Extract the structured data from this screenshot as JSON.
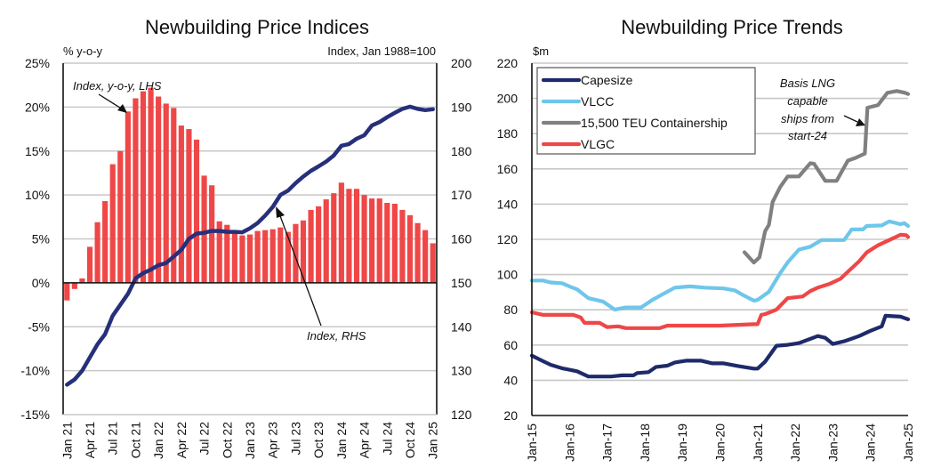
{
  "chart_data": [
    {
      "type": "bar",
      "title": "Newbuilding Price Indices",
      "left_axis_unit": "% y-o-y",
      "right_axis_unit": "Index, Jan 1988=100",
      "xlabel": "",
      "ylabel": "% y-o-y",
      "ylim": [
        -15,
        25
      ],
      "y_ticks": [
        "25%",
        "20%",
        "15%",
        "10%",
        "5%",
        "0%",
        "-5%",
        "-10%",
        "-15%"
      ],
      "y_tick_values": [
        25,
        20,
        15,
        10,
        5,
        0,
        -5,
        -10,
        -15
      ],
      "y2lim": [
        120,
        200
      ],
      "y2_ticks": [
        "200",
        "190",
        "180",
        "170",
        "160",
        "150",
        "140",
        "130",
        "120"
      ],
      "y2_tick_values": [
        200,
        190,
        180,
        170,
        160,
        150,
        140,
        130,
        120
      ],
      "x_tick_labels": [
        "Jan 21",
        "Apr 21",
        "Jul 21",
        "Oct 21",
        "Jan 22",
        "Apr 22",
        "Jul 22",
        "Oct 22",
        "Jan 23",
        "Apr 23",
        "Jul 23",
        "Oct 23",
        "Jan 24",
        "Apr 24",
        "Jul 24",
        "Oct 24",
        "Jan 25"
      ],
      "x_tick_every_n_months": 3,
      "grid": true,
      "series": [
        {
          "name": "Index, y-o-y, LHS",
          "kind": "bar",
          "axis": "left",
          "color": "#ef4747",
          "values": [
            -2.0,
            -0.7,
            0.5,
            4.1,
            6.9,
            9.3,
            13.5,
            15.0,
            19.5,
            21.0,
            21.8,
            22.2,
            21.2,
            20.4,
            19.9,
            17.9,
            17.5,
            16.3,
            12.2,
            11.1,
            7.0,
            6.6,
            5.9,
            5.4,
            5.5,
            5.9,
            6.0,
            6.1,
            6.3,
            5.8,
            6.7,
            7.1,
            8.3,
            8.7,
            9.5,
            10.2,
            11.4,
            10.7,
            10.7,
            10.0,
            9.6,
            9.6,
            9.1,
            9.0,
            8.3,
            7.7,
            6.8,
            6.0,
            4.5
          ]
        },
        {
          "name": "Index, RHS",
          "kind": "line",
          "axis": "right",
          "color": "#26307a",
          "values": [
            126.8,
            128.0,
            130.0,
            133.0,
            136.0,
            138.3,
            142.5,
            145.0,
            147.5,
            151.0,
            152.2,
            153.0,
            154.0,
            154.5,
            156.0,
            157.5,
            160.0,
            161.2,
            161.4,
            161.8,
            161.8,
            161.6,
            161.6,
            161.5,
            162.4,
            163.6,
            165.3,
            167.3,
            170.0,
            171.0,
            172.7,
            174.2,
            175.5,
            176.5,
            177.6,
            179.0,
            181.2,
            181.6,
            182.8,
            183.6,
            185.8,
            186.6,
            187.7,
            188.7,
            189.6,
            190.1,
            189.6,
            189.3,
            189.5
          ]
        }
      ],
      "annotations": [
        {
          "text": "Index, y-o-y, LHS",
          "points_to": "bars around Sep 21"
        },
        {
          "text": "Index, RHS",
          "points_to": "index line around Apr 23"
        }
      ]
    },
    {
      "type": "line",
      "title": "Newbuilding Price Trends",
      "ylabel": "$m",
      "xlabel": "",
      "ylim": [
        20,
        220
      ],
      "y_ticks": [
        "220",
        "200",
        "180",
        "160",
        "140",
        "120",
        "100",
        "80",
        "60",
        "40",
        "20"
      ],
      "y_tick_values": [
        220,
        200,
        180,
        160,
        140,
        120,
        100,
        80,
        60,
        40,
        20
      ],
      "xlim": [
        2015.0,
        2025.0
      ],
      "x_tick_labels": [
        "Jan-15",
        "Jan-16",
        "Jan-17",
        "Jan-18",
        "Jan-19",
        "Jan-20",
        "Jan-21",
        "Jan-22",
        "Jan-23",
        "Jan-24",
        "Jan-25"
      ],
      "grid": true,
      "legend": {
        "position": "top-left"
      },
      "series": [
        {
          "name": "Capesize",
          "color": "#1f2a6b",
          "points": [
            [
              2015.0,
              54
            ],
            [
              2015.3,
              50.8
            ],
            [
              2015.5,
              48.8
            ],
            [
              2015.8,
              46.8
            ],
            [
              2016.2,
              45.1
            ],
            [
              2016.5,
              42.1
            ],
            [
              2017.1,
              42.1
            ],
            [
              2017.4,
              42.8
            ],
            [
              2017.7,
              42.8
            ],
            [
              2017.8,
              44.1
            ],
            [
              2018.1,
              44.6
            ],
            [
              2018.3,
              47.6
            ],
            [
              2018.6,
              48.3
            ],
            [
              2018.8,
              50.1
            ],
            [
              2019.1,
              51.1
            ],
            [
              2019.5,
              51.1
            ],
            [
              2019.8,
              49.6
            ],
            [
              2020.1,
              49.6
            ],
            [
              2020.5,
              48.0
            ],
            [
              2020.9,
              46.6
            ],
            [
              2021.0,
              46.6
            ],
            [
              2021.2,
              50.6
            ],
            [
              2021.5,
              59.6
            ],
            [
              2021.8,
              60.1
            ],
            [
              2022.1,
              61.1
            ],
            [
              2022.6,
              65.1
            ],
            [
              2022.8,
              64.1
            ],
            [
              2023.0,
              60.6
            ],
            [
              2023.3,
              62.1
            ],
            [
              2023.7,
              65.1
            ],
            [
              2024.0,
              68.1
            ],
            [
              2024.3,
              70.6
            ],
            [
              2024.4,
              76.6
            ],
            [
              2024.8,
              76.1
            ],
            [
              2025.0,
              74.6
            ]
          ]
        },
        {
          "name": "VLCC",
          "color": "#6ec6ea",
          "points": [
            [
              2015.0,
              96.6
            ],
            [
              2015.3,
              96.6
            ],
            [
              2015.5,
              95.5
            ],
            [
              2015.8,
              95.1
            ],
            [
              2016.0,
              93.3
            ],
            [
              2016.2,
              91.6
            ],
            [
              2016.5,
              86.6
            ],
            [
              2016.7,
              85.6
            ],
            [
              2016.9,
              84.6
            ],
            [
              2017.2,
              80.1
            ],
            [
              2017.5,
              81.3
            ],
            [
              2017.9,
              81.3
            ],
            [
              2018.2,
              85.6
            ],
            [
              2018.5,
              89.1
            ],
            [
              2018.8,
              92.6
            ],
            [
              2019.2,
              93.3
            ],
            [
              2019.6,
              92.6
            ],
            [
              2020.1,
              92.1
            ],
            [
              2020.4,
              91.0
            ],
            [
              2020.6,
              88.5
            ],
            [
              2020.9,
              85.2
            ],
            [
              2021.0,
              85.6
            ],
            [
              2021.3,
              90.2
            ],
            [
              2021.6,
              100.8
            ],
            [
              2021.8,
              106.9
            ],
            [
              2022.1,
              114.2
            ],
            [
              2022.4,
              115.8
            ],
            [
              2022.7,
              119.6
            ],
            [
              2023.3,
              119.6
            ],
            [
              2023.5,
              125.6
            ],
            [
              2023.8,
              125.6
            ],
            [
              2023.9,
              127.6
            ],
            [
              2024.3,
              127.9
            ],
            [
              2024.5,
              130.2
            ],
            [
              2024.8,
              128.6
            ],
            [
              2024.9,
              129.2
            ],
            [
              2025.0,
              127.6
            ]
          ]
        },
        {
          "name": "15,500 TEU Containership",
          "color": "#808080",
          "points": [
            [
              2020.65,
              112.7
            ],
            [
              2020.9,
              106.8
            ],
            [
              2021.05,
              109.8
            ],
            [
              2021.2,
              124.7
            ],
            [
              2021.3,
              128.2
            ],
            [
              2021.4,
              141.2
            ],
            [
              2021.6,
              149.7
            ],
            [
              2021.8,
              155.7
            ],
            [
              2022.1,
              155.7
            ],
            [
              2022.4,
              163.2
            ],
            [
              2022.5,
              162.9
            ],
            [
              2022.8,
              153.2
            ],
            [
              2023.1,
              153.2
            ],
            [
              2023.4,
              164.7
            ],
            [
              2023.6,
              166.2
            ],
            [
              2023.85,
              168.7
            ],
            [
              2023.92,
              194.7
            ],
            [
              2024.2,
              196.2
            ],
            [
              2024.45,
              203.2
            ],
            [
              2024.7,
              204.2
            ],
            [
              2024.92,
              203.2
            ],
            [
              2025.0,
              202.5
            ]
          ]
        },
        {
          "name": "VLGC",
          "color": "#ef4747",
          "points": [
            [
              2015.0,
              78.6
            ],
            [
              2015.3,
              77.1
            ],
            [
              2016.1,
              77.1
            ],
            [
              2016.3,
              75.6
            ],
            [
              2016.4,
              72.6
            ],
            [
              2016.8,
              72.6
            ],
            [
              2017.0,
              70.2
            ],
            [
              2017.3,
              70.6
            ],
            [
              2017.5,
              69.6
            ],
            [
              2018.4,
              69.6
            ],
            [
              2018.6,
              71.0
            ],
            [
              2020.0,
              71.0
            ],
            [
              2020.9,
              71.8
            ],
            [
              2021.0,
              71.8
            ],
            [
              2021.1,
              77.1
            ],
            [
              2021.2,
              77.6
            ],
            [
              2021.5,
              80.1
            ],
            [
              2021.8,
              86.6
            ],
            [
              2022.2,
              87.6
            ],
            [
              2022.4,
              90.6
            ],
            [
              2022.6,
              92.6
            ],
            [
              2022.9,
              94.6
            ],
            [
              2023.2,
              97.6
            ],
            [
              2023.45,
              102.6
            ],
            [
              2023.7,
              107.6
            ],
            [
              2023.9,
              112.6
            ],
            [
              2024.2,
              116.6
            ],
            [
              2024.5,
              119.6
            ],
            [
              2024.8,
              122.6
            ],
            [
              2024.95,
              122.3
            ],
            [
              2025.0,
              121.3
            ]
          ]
        }
      ],
      "annotations": [
        {
          "text_lines": [
            "Basis LNG",
            "capable",
            "ships from",
            "start-24"
          ],
          "points_to": "Containership jump at start of 2024"
        }
      ]
    }
  ]
}
